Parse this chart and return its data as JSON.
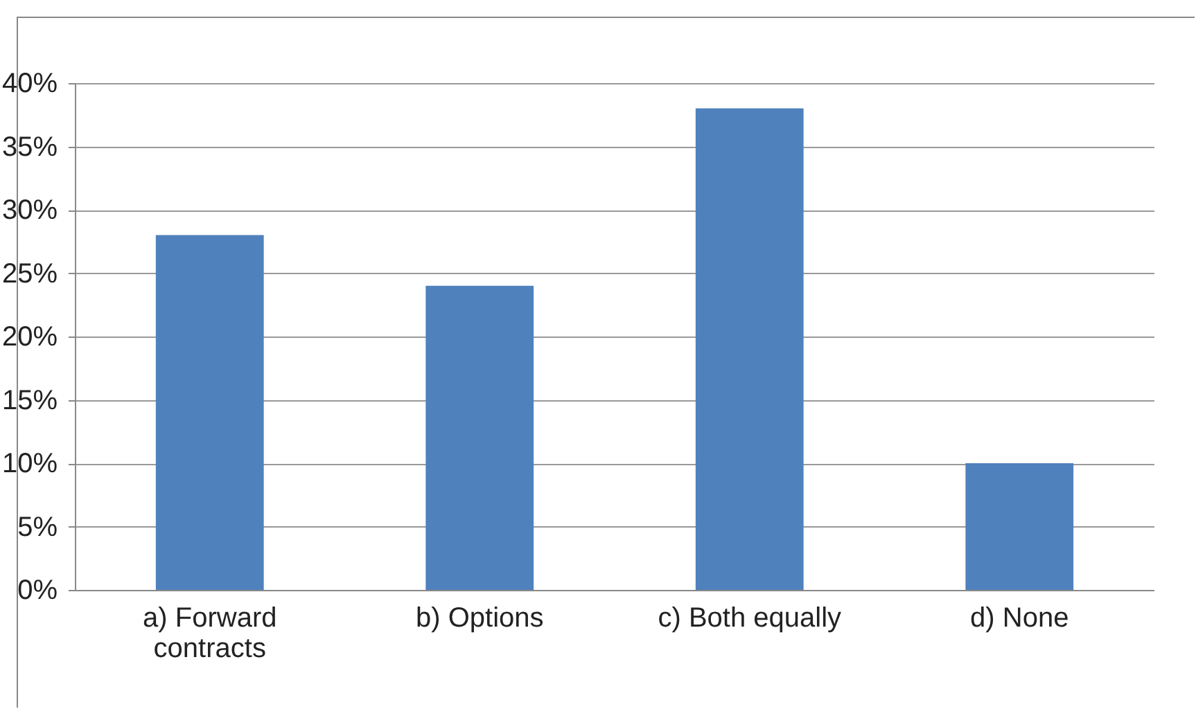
{
  "chart_data": {
    "type": "bar",
    "categories": [
      "a) Forward contracts",
      "b) Options",
      "c) Both equally",
      "d) None"
    ],
    "values": [
      28,
      24,
      38,
      10
    ],
    "color": "#4f81bd",
    "ylim": [
      0,
      40
    ],
    "yticks": [
      {
        "value": 0,
        "label": "0%"
      },
      {
        "value": 5,
        "label": "5%"
      },
      {
        "value": 10,
        "label": "10%"
      },
      {
        "value": 15,
        "label": "15%"
      },
      {
        "value": 20,
        "label": "20%"
      },
      {
        "value": 25,
        "label": "25%"
      },
      {
        "value": 30,
        "label": "30%"
      },
      {
        "value": 35,
        "label": "35%"
      },
      {
        "value": 40,
        "label": "40%"
      }
    ],
    "grid": "y"
  }
}
